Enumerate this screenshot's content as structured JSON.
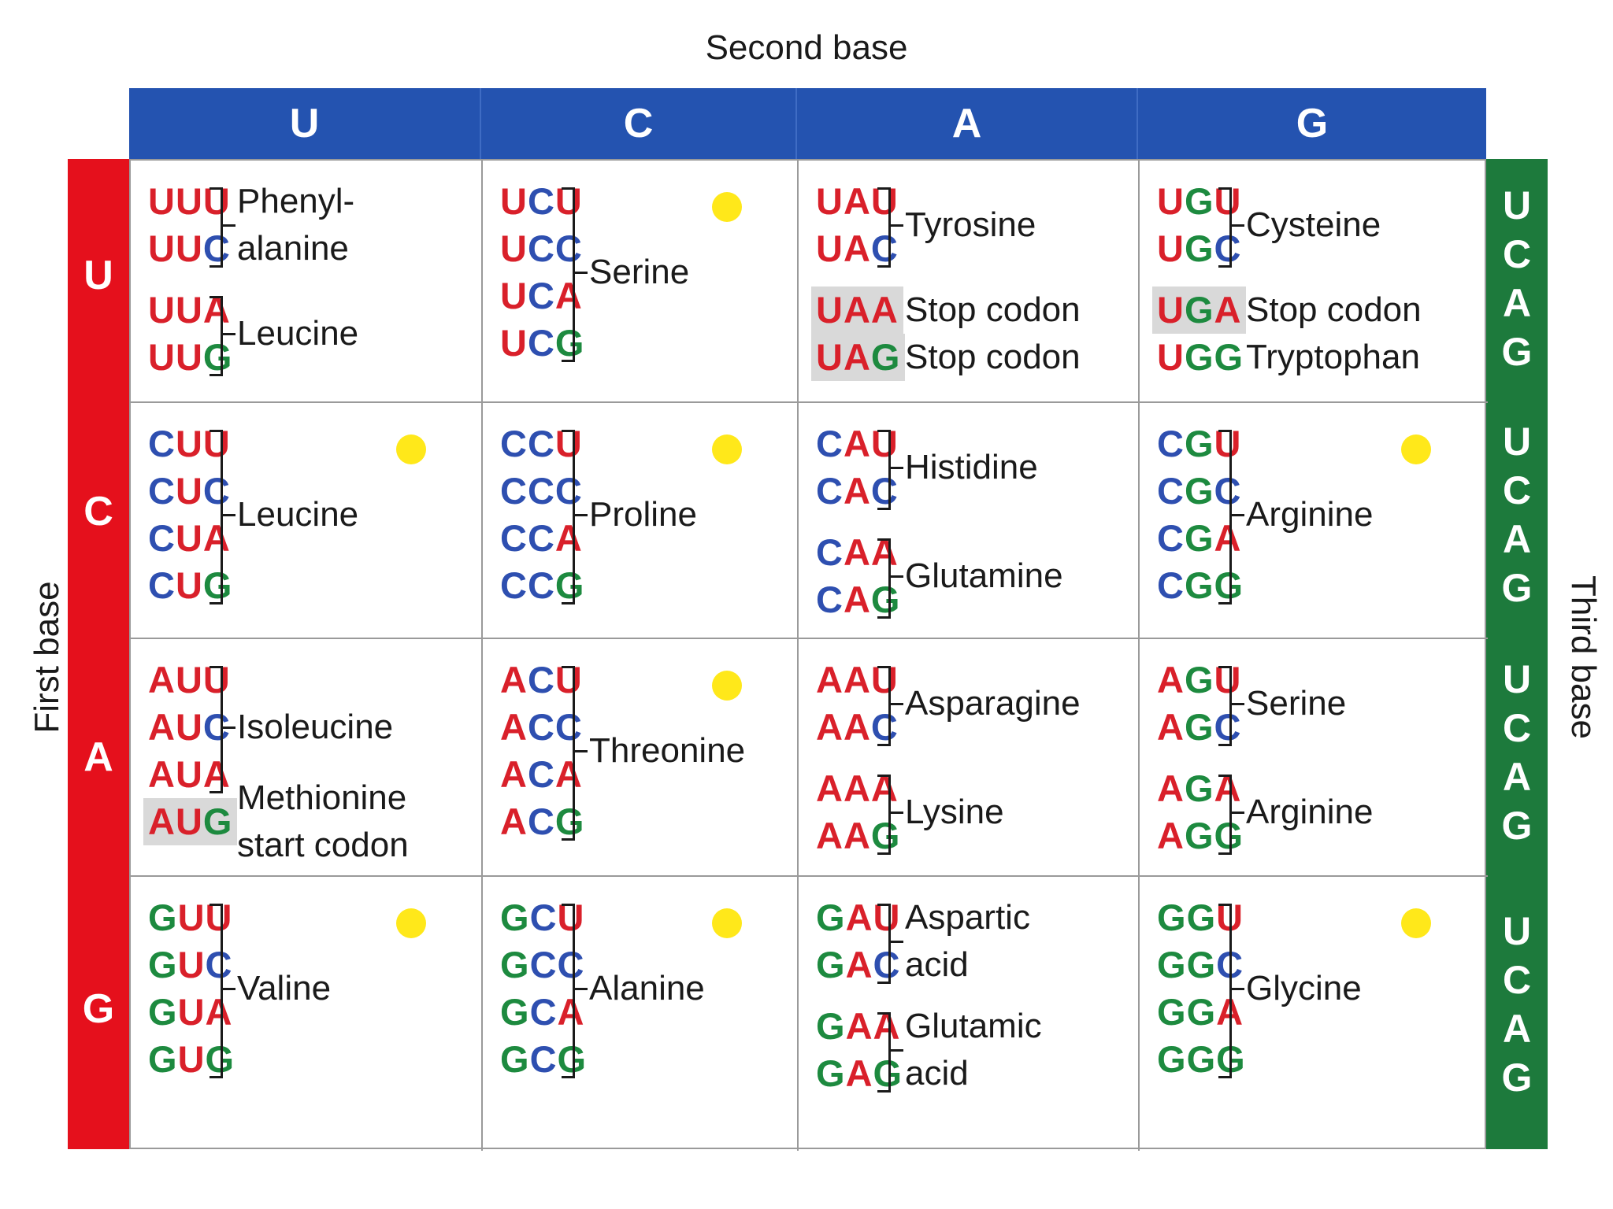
{
  "labels": {
    "second_base": "Second base",
    "first_base": "First base",
    "third_base": "Third base"
  },
  "second_bases": [
    "U",
    "C",
    "A",
    "G"
  ],
  "first_bases": [
    "U",
    "C",
    "A",
    "G"
  ],
  "third_bases": [
    "U",
    "C",
    "A",
    "G"
  ],
  "colors": {
    "U": "#d9202a",
    "C": "#2e4fb0",
    "A": "#d9202a",
    "G": "#1d8a3f",
    "header_blue": "#2453b0",
    "first_red": "#e5101c",
    "third_green": "#1d7a3c",
    "marker": "#ffe81a"
  },
  "cells": [
    [
      {
        "codons": [
          "UUU",
          "UUC",
          "UUA",
          "UUG"
        ],
        "groups": [
          {
            "span": [
              0,
              1
            ],
            "name": [
              "Phenyl-",
              "alanine"
            ]
          },
          {
            "span": [
              2,
              3
            ],
            "name": [
              "Leucine"
            ]
          }
        ],
        "highlight": [],
        "dot": false
      },
      {
        "codons": [
          "UCU",
          "UCC",
          "UCA",
          "UCG"
        ],
        "groups": [
          {
            "span": [
              0,
              3
            ],
            "name": [
              "Serine"
            ]
          }
        ],
        "highlight": [],
        "dot": true
      },
      {
        "codons": [
          "UAU",
          "UAC",
          "UAA",
          "UAG"
        ],
        "groups": [
          {
            "span": [
              0,
              1
            ],
            "name": [
              "Tyrosine"
            ]
          },
          {
            "span": [
              2,
              2
            ],
            "name": [
              "Stop codon"
            ],
            "plain": true
          },
          {
            "span": [
              3,
              3
            ],
            "name": [
              "Stop codon"
            ],
            "plain": true
          }
        ],
        "highlight": [
          2,
          3
        ],
        "dot": false
      },
      {
        "codons": [
          "UGU",
          "UGC",
          "UGA",
          "UGG"
        ],
        "groups": [
          {
            "span": [
              0,
              1
            ],
            "name": [
              "Cysteine"
            ]
          },
          {
            "span": [
              2,
              2
            ],
            "name": [
              "Stop codon"
            ],
            "plain": true
          },
          {
            "span": [
              3,
              3
            ],
            "name": [
              "Tryptophan"
            ],
            "plain": true
          }
        ],
        "highlight": [
          2
        ],
        "dot": false
      }
    ],
    [
      {
        "codons": [
          "CUU",
          "CUC",
          "CUA",
          "CUG"
        ],
        "groups": [
          {
            "span": [
              0,
              3
            ],
            "name": [
              "Leucine"
            ]
          }
        ],
        "highlight": [],
        "dot": true
      },
      {
        "codons": [
          "CCU",
          "CCC",
          "CCA",
          "CCG"
        ],
        "groups": [
          {
            "span": [
              0,
              3
            ],
            "name": [
              "Proline"
            ]
          }
        ],
        "highlight": [],
        "dot": true
      },
      {
        "codons": [
          "CAU",
          "CAC",
          "CAA",
          "CAG"
        ],
        "groups": [
          {
            "span": [
              0,
              1
            ],
            "name": [
              "Histidine"
            ]
          },
          {
            "span": [
              2,
              3
            ],
            "name": [
              "Glutamine"
            ]
          }
        ],
        "highlight": [],
        "dot": false
      },
      {
        "codons": [
          "CGU",
          "CGC",
          "CGA",
          "CGG"
        ],
        "groups": [
          {
            "span": [
              0,
              3
            ],
            "name": [
              "Arginine"
            ]
          }
        ],
        "highlight": [],
        "dot": true
      }
    ],
    [
      {
        "codons": [
          "AUU",
          "AUC",
          "AUA",
          "AUG"
        ],
        "groups": [
          {
            "span": [
              0,
              2
            ],
            "name": [
              "Isoleucine"
            ]
          },
          {
            "span": [
              3,
              3
            ],
            "name": [
              "Methionine",
              "start codon"
            ],
            "plain": true
          }
        ],
        "highlight": [
          3
        ],
        "dot": false
      },
      {
        "codons": [
          "ACU",
          "ACC",
          "ACA",
          "ACG"
        ],
        "groups": [
          {
            "span": [
              0,
              3
            ],
            "name": [
              "Threonine"
            ]
          }
        ],
        "highlight": [],
        "dot": true
      },
      {
        "codons": [
          "AAU",
          "AAC",
          "AAA",
          "AAG"
        ],
        "groups": [
          {
            "span": [
              0,
              1
            ],
            "name": [
              "Asparagine"
            ]
          },
          {
            "span": [
              2,
              3
            ],
            "name": [
              "Lysine"
            ]
          }
        ],
        "highlight": [],
        "dot": false
      },
      {
        "codons": [
          "AGU",
          "AGC",
          "AGA",
          "AGG"
        ],
        "groups": [
          {
            "span": [
              0,
              1
            ],
            "name": [
              "Serine"
            ]
          },
          {
            "span": [
              2,
              3
            ],
            "name": [
              "Arginine"
            ]
          }
        ],
        "highlight": [],
        "dot": false
      }
    ],
    [
      {
        "codons": [
          "GUU",
          "GUC",
          "GUA",
          "GUG"
        ],
        "groups": [
          {
            "span": [
              0,
              3
            ],
            "name": [
              "Valine"
            ]
          }
        ],
        "highlight": [],
        "dot": true
      },
      {
        "codons": [
          "GCU",
          "GCC",
          "GCA",
          "GCG"
        ],
        "groups": [
          {
            "span": [
              0,
              3
            ],
            "name": [
              "Alanine"
            ]
          }
        ],
        "highlight": [],
        "dot": true
      },
      {
        "codons": [
          "GAU",
          "GAC",
          "GAA",
          "GAG"
        ],
        "groups": [
          {
            "span": [
              0,
              1
            ],
            "name": [
              "Aspartic",
              "acid"
            ]
          },
          {
            "span": [
              2,
              3
            ],
            "name": [
              "Glutamic",
              "acid"
            ]
          }
        ],
        "highlight": [],
        "dot": false
      },
      {
        "codons": [
          "GGU",
          "GGC",
          "GGA",
          "GGG"
        ],
        "groups": [
          {
            "span": [
              0,
              3
            ],
            "name": [
              "Glycine"
            ]
          }
        ],
        "highlight": [],
        "dot": true
      }
    ]
  ]
}
